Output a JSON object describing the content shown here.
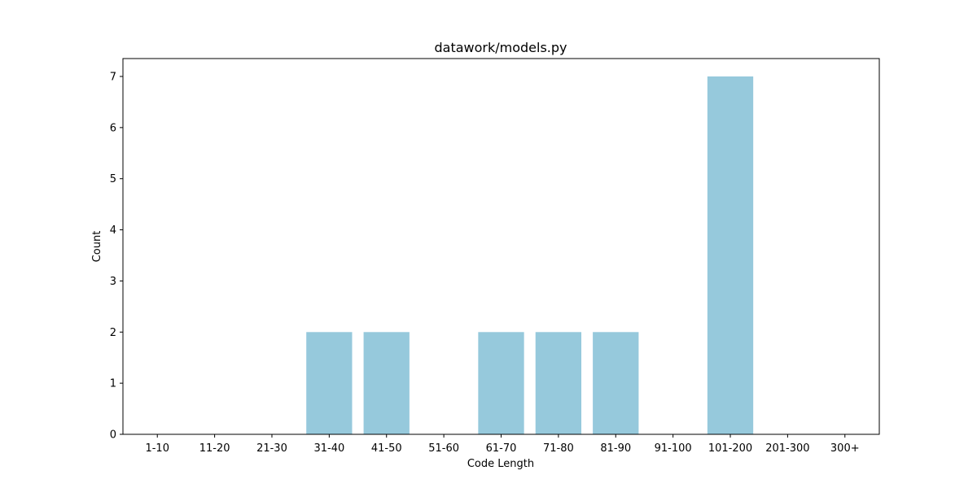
{
  "chart_data": {
    "type": "bar",
    "title": "datawork/models.py",
    "xlabel": "Code Length",
    "ylabel": "Count",
    "categories": [
      "1-10",
      "11-20",
      "21-30",
      "31-40",
      "41-50",
      "51-60",
      "61-70",
      "71-80",
      "81-90",
      "91-100",
      "101-200",
      "201-300",
      "300+"
    ],
    "values": [
      0,
      0,
      0,
      2,
      2,
      0,
      2,
      2,
      2,
      0,
      7,
      0,
      0
    ],
    "ylim": [
      0,
      7.35
    ],
    "yticks": [
      0,
      1,
      2,
      3,
      4,
      5,
      6,
      7
    ],
    "grid": false,
    "legend": false,
    "bar_color": "#96c9dc"
  }
}
